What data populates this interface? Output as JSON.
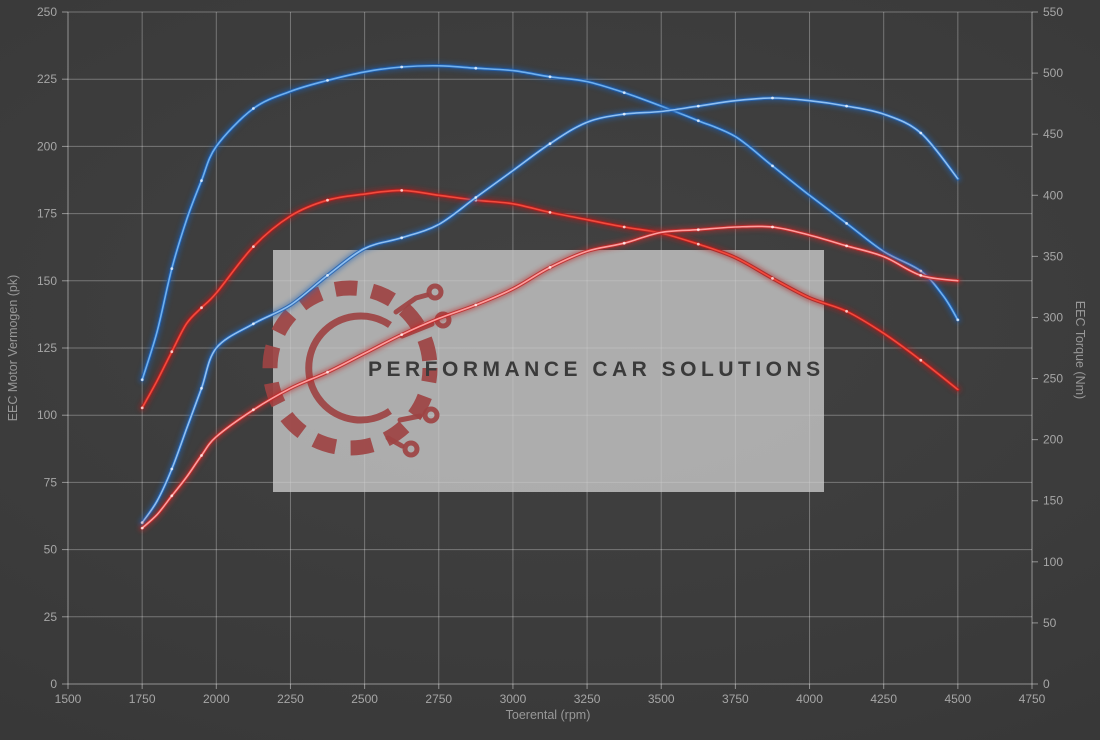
{
  "watermark": {
    "brand_text": "PERFORMANCE CAR SOLUTIONS",
    "panel_color": "#cccccc",
    "logo_color": "#9d4343",
    "text_color": "#3a3a3a"
  },
  "chart_data": {
    "type": "line",
    "title": "",
    "xlabel": "Toerental (rpm)",
    "ylabel_left": "EEC Motor Vermogen (pk)",
    "ylabel_right": "EEC Torque (Nm)",
    "x_range": [
      1500,
      4750
    ],
    "y_left_range": [
      0,
      250
    ],
    "y_right_range": [
      0,
      550
    ],
    "x_ticks": [
      1500,
      1750,
      2000,
      2250,
      2500,
      2750,
      3000,
      3250,
      3500,
      3750,
      4000,
      4250,
      4500,
      4750
    ],
    "y_left_ticks": [
      0,
      25,
      50,
      75,
      100,
      125,
      150,
      175,
      200,
      225,
      250
    ],
    "y_right_ticks": [
      0,
      50,
      100,
      150,
      200,
      250,
      300,
      350,
      400,
      450,
      500,
      550
    ],
    "grid": true,
    "legend": "none",
    "background_color": "#3a3a3a",
    "gridline_color": "rgba(255,255,255,0.30)",
    "tick_label_color": "#a6a6a6",
    "series": [
      {
        "name": "blue-torque",
        "axis": "right",
        "unit": "Nm",
        "glow_color": "#1f5fb0",
        "core_color": "#6fb0ef",
        "points": [
          [
            1750,
            249
          ],
          [
            1800,
            288
          ],
          [
            1850,
            340
          ],
          [
            1900,
            380
          ],
          [
            1950,
            412
          ],
          [
            2000,
            440
          ],
          [
            2125,
            471
          ],
          [
            2250,
            485
          ],
          [
            2375,
            494
          ],
          [
            2500,
            501
          ],
          [
            2625,
            505
          ],
          [
            2750,
            506
          ],
          [
            2875,
            504
          ],
          [
            3000,
            502
          ],
          [
            3125,
            497
          ],
          [
            3250,
            493
          ],
          [
            3375,
            484
          ],
          [
            3500,
            473
          ],
          [
            3625,
            461
          ],
          [
            3750,
            448
          ],
          [
            3875,
            424
          ],
          [
            4000,
            400
          ],
          [
            4125,
            377
          ],
          [
            4250,
            354
          ],
          [
            4375,
            338
          ],
          [
            4450,
            318
          ],
          [
            4500,
            298
          ]
        ]
      },
      {
        "name": "red-torque",
        "axis": "right",
        "unit": "Nm",
        "glow_color": "#b01f1f",
        "core_color": "#f34b3d",
        "points": [
          [
            1750,
            226
          ],
          [
            1800,
            248
          ],
          [
            1850,
            272
          ],
          [
            1900,
            295
          ],
          [
            1950,
            308
          ],
          [
            2000,
            320
          ],
          [
            2125,
            358
          ],
          [
            2250,
            383
          ],
          [
            2375,
            396
          ],
          [
            2500,
            401
          ],
          [
            2625,
            404
          ],
          [
            2750,
            400
          ],
          [
            2875,
            396
          ],
          [
            3000,
            393
          ],
          [
            3125,
            386
          ],
          [
            3250,
            380
          ],
          [
            3375,
            374
          ],
          [
            3500,
            369
          ],
          [
            3625,
            360
          ],
          [
            3750,
            349
          ],
          [
            3875,
            332
          ],
          [
            4000,
            316
          ],
          [
            4125,
            305
          ],
          [
            4250,
            287
          ],
          [
            4375,
            265
          ],
          [
            4500,
            241
          ]
        ]
      },
      {
        "name": "blue-power",
        "axis": "left",
        "unit": "pk",
        "glow_color": "#2465b5",
        "core_color": "#8fc0f2",
        "points": [
          [
            1750,
            60
          ],
          [
            1800,
            68
          ],
          [
            1850,
            80
          ],
          [
            1900,
            95
          ],
          [
            1950,
            110
          ],
          [
            2000,
            125
          ],
          [
            2125,
            134
          ],
          [
            2250,
            141
          ],
          [
            2375,
            152
          ],
          [
            2500,
            162
          ],
          [
            2625,
            166
          ],
          [
            2750,
            171
          ],
          [
            2875,
            181
          ],
          [
            3000,
            191
          ],
          [
            3125,
            201
          ],
          [
            3250,
            209
          ],
          [
            3375,
            212
          ],
          [
            3500,
            213
          ],
          [
            3625,
            215
          ],
          [
            3750,
            217
          ],
          [
            3875,
            218
          ],
          [
            4000,
            217
          ],
          [
            4125,
            215
          ],
          [
            4250,
            212
          ],
          [
            4375,
            205
          ],
          [
            4500,
            188
          ]
        ]
      },
      {
        "name": "red-power",
        "axis": "left",
        "unit": "pk",
        "glow_color": "#c02a2a",
        "core_color": "#ff9d9d",
        "points": [
          [
            1750,
            58
          ],
          [
            1800,
            63
          ],
          [
            1850,
            70
          ],
          [
            1900,
            77
          ],
          [
            1950,
            85
          ],
          [
            2000,
            92
          ],
          [
            2125,
            102
          ],
          [
            2250,
            110
          ],
          [
            2375,
            116
          ],
          [
            2500,
            123
          ],
          [
            2625,
            130
          ],
          [
            2750,
            136
          ],
          [
            2875,
            141
          ],
          [
            3000,
            147
          ],
          [
            3125,
            155
          ],
          [
            3250,
            161
          ],
          [
            3375,
            164
          ],
          [
            3500,
            168
          ],
          [
            3625,
            169
          ],
          [
            3750,
            170
          ],
          [
            3875,
            170
          ],
          [
            4000,
            167
          ],
          [
            4125,
            163
          ],
          [
            4250,
            159
          ],
          [
            4375,
            152
          ],
          [
            4500,
            150
          ]
        ]
      }
    ]
  }
}
